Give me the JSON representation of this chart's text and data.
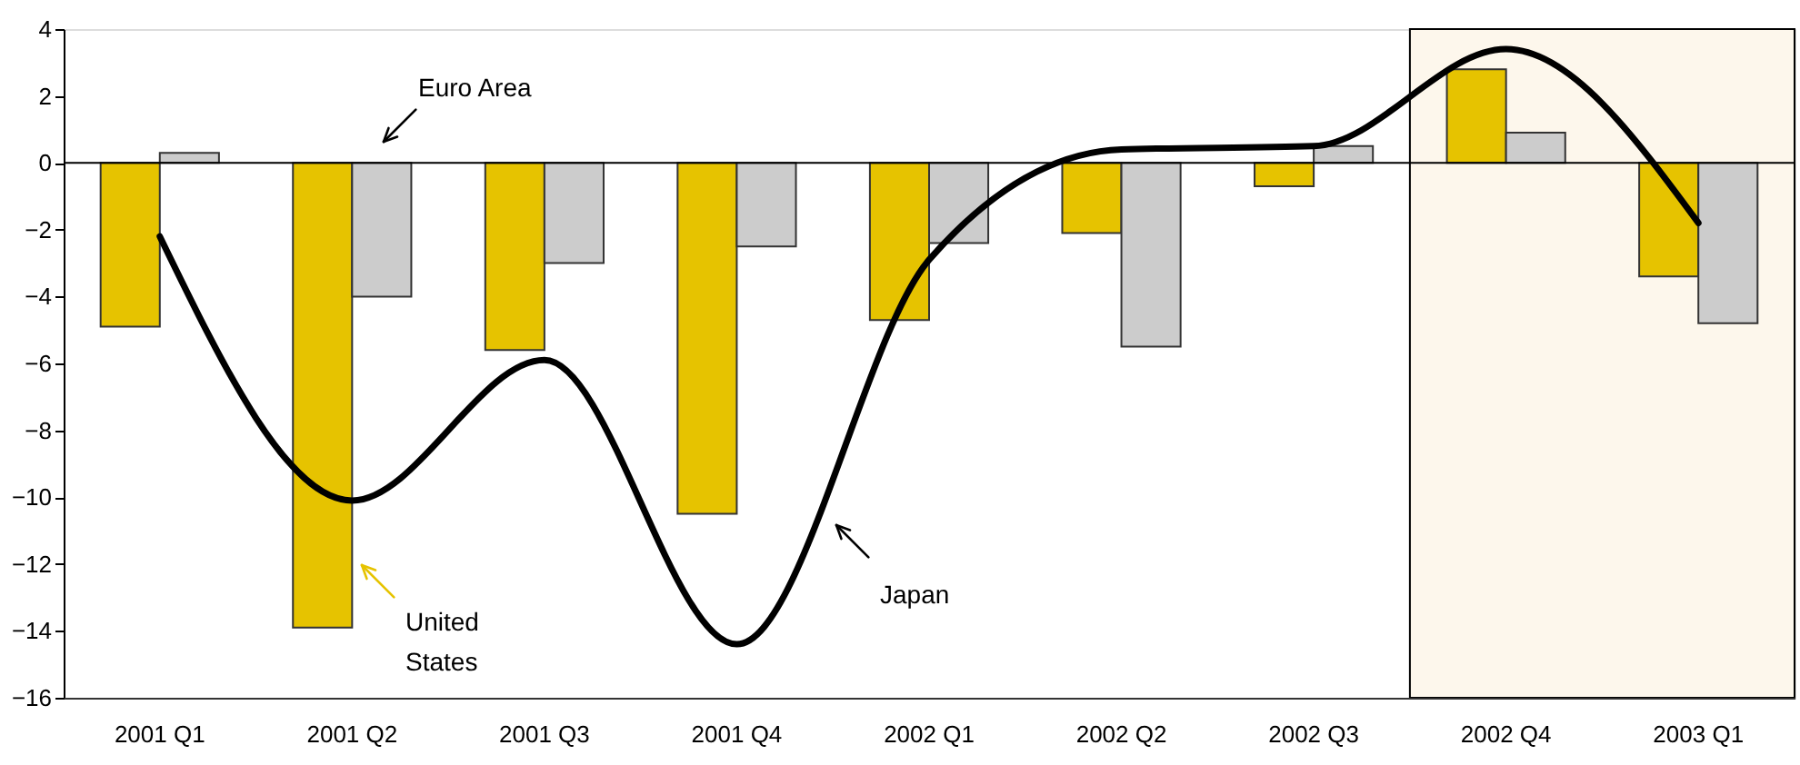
{
  "chart_data": {
    "type": "bar",
    "categories": [
      "2001 Q1",
      "2001 Q2",
      "2001 Q3",
      "2001 Q4",
      "2002 Q1",
      "2002 Q2",
      "2002 Q3",
      "2002 Q4",
      "2003 Q1"
    ],
    "series": [
      {
        "color": "#e6c300",
        "values": [
          -4.9,
          -13.9,
          -5.6,
          -10.5,
          -4.7,
          -2.1,
          -0.7,
          2.8,
          -3.4
        ]
      },
      {
        "color": "#cccccc",
        "values": [
          0.3,
          -4.0,
          -3.0,
          -2.5,
          -2.4,
          -5.5,
          0.5,
          0.9,
          -4.8
        ]
      },
      {
        "type": "line",
        "color": "#000000",
        "values": [
          -2.2,
          -10.1,
          -5.9,
          -14.4,
          -2.9,
          0.4,
          0.5,
          3.4,
          -1.8
        ]
      }
    ],
    "ylim": [
      -16,
      4
    ],
    "yticks": [
      -16,
      -14,
      -12,
      -10,
      -8,
      -6,
      -4,
      -2,
      0,
      2,
      4
    ],
    "grid": false,
    "legend": false,
    "ref_lines": [
      {
        "axis": "y",
        "value": 0,
        "color": "#000000"
      }
    ],
    "bands": [
      {
        "axis": "x",
        "from": "2002 Q4",
        "to": "2003 Q1",
        "color": "#fdf7ec"
      }
    ],
    "annotations": [
      "Euro Area",
      "United States",
      "Japan"
    ]
  }
}
